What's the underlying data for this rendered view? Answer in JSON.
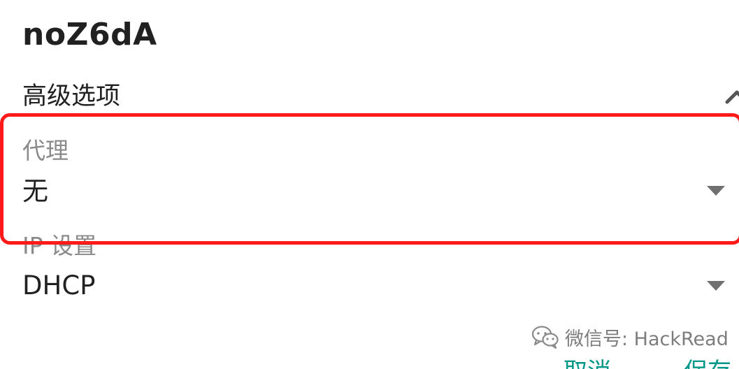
{
  "dialog": {
    "network_name": "noZ6dA",
    "advanced_options_label": "高级选项"
  },
  "proxy": {
    "label": "代理",
    "value": "无"
  },
  "ip_settings": {
    "label": "IP 设置",
    "value": "DHCP"
  },
  "watermark": {
    "text": "微信号: HackRead"
  },
  "actions": {
    "cancel_label": "取消",
    "save_label": "保存"
  },
  "colors": {
    "highlight": "#ff1a1a",
    "accent": "#009688",
    "secondary_text": "#8a8a8a",
    "primary_text": "#212121"
  }
}
